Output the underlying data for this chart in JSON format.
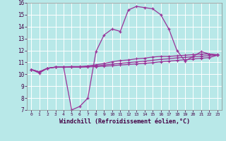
{
  "xlabel": "Windchill (Refroidissement éolien,°C)",
  "background_color": "#b8e8e8",
  "grid_color": "#ffffff",
  "line_color": "#993399",
  "x_values": [
    0,
    1,
    2,
    3,
    4,
    5,
    6,
    7,
    8,
    9,
    10,
    11,
    12,
    13,
    14,
    15,
    16,
    17,
    18,
    19,
    20,
    21,
    22,
    23
  ],
  "curve1": [
    10.4,
    10.1,
    10.5,
    10.6,
    10.6,
    7.0,
    7.3,
    8.0,
    11.9,
    13.3,
    13.8,
    13.6,
    15.4,
    15.7,
    15.6,
    15.5,
    15.0,
    13.8,
    12.0,
    11.1,
    11.5,
    11.9,
    11.7,
    11.6
  ],
  "curve2": [
    10.4,
    10.2,
    10.5,
    10.6,
    10.6,
    10.65,
    10.65,
    10.7,
    10.8,
    10.9,
    11.05,
    11.15,
    11.2,
    11.3,
    11.35,
    11.45,
    11.5,
    11.5,
    11.55,
    11.6,
    11.65,
    11.7,
    11.7,
    11.65
  ],
  "curve3": [
    10.4,
    10.2,
    10.5,
    10.6,
    10.6,
    10.6,
    10.6,
    10.65,
    10.7,
    10.78,
    10.85,
    10.92,
    10.98,
    11.04,
    11.1,
    11.18,
    11.25,
    11.3,
    11.38,
    11.42,
    11.47,
    11.52,
    11.56,
    11.6
  ],
  "curve4": [
    10.4,
    10.2,
    10.5,
    10.6,
    10.6,
    10.6,
    10.6,
    10.62,
    10.64,
    10.68,
    10.72,
    10.78,
    10.82,
    10.87,
    10.92,
    10.97,
    11.05,
    11.1,
    11.17,
    11.22,
    11.28,
    11.35,
    11.4,
    11.6
  ],
  "ylim": [
    7,
    16
  ],
  "xlim": [
    -0.5,
    23.5
  ],
  "yticks": [
    7,
    8,
    9,
    10,
    11,
    12,
    13,
    14,
    15,
    16
  ],
  "xticks": [
    0,
    1,
    2,
    3,
    4,
    5,
    6,
    7,
    8,
    9,
    10,
    11,
    12,
    13,
    14,
    15,
    16,
    17,
    18,
    19,
    20,
    21,
    22,
    23
  ]
}
